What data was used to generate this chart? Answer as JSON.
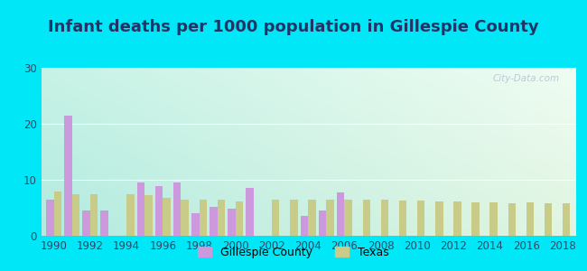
{
  "title": "Infant deaths per 1000 population in Gillespie County",
  "years": [
    1990,
    1991,
    1992,
    1993,
    1994,
    1995,
    1996,
    1997,
    1998,
    1999,
    2000,
    2001,
    2002,
    2003,
    2004,
    2005,
    2006,
    2007,
    2008,
    2009,
    2010,
    2011,
    2012,
    2013,
    2014,
    2015,
    2016,
    2017,
    2018
  ],
  "gillespie": [
    6.5,
    21.5,
    4.5,
    4.5,
    0.0,
    9.5,
    8.8,
    9.5,
    4.0,
    5.2,
    4.8,
    8.5,
    0.0,
    0.0,
    3.5,
    4.5,
    7.8,
    0.0,
    0.0,
    0.0,
    0.0,
    0.0,
    0.0,
    0.0,
    0.0,
    0.0,
    0.0,
    0.0,
    0.0
  ],
  "texas": [
    7.9,
    7.5,
    7.5,
    0.0,
    7.5,
    7.3,
    6.8,
    6.5,
    6.5,
    6.5,
    6.2,
    0.0,
    6.5,
    6.5,
    6.4,
    6.5,
    6.5,
    6.5,
    6.4,
    6.3,
    6.3,
    6.2,
    6.2,
    6.0,
    6.0,
    5.8,
    6.0,
    5.8,
    5.8
  ],
  "gillespie_color": "#cc99dd",
  "texas_color": "#c8cc88",
  "outer_bg": "#00e8f8",
  "title_color": "#223366",
  "ylim": [
    0,
    30
  ],
  "yticks": [
    0,
    10,
    20,
    30
  ],
  "bar_width": 0.42,
  "title_fontsize": 13,
  "legend_labels": [
    "Gillespie County",
    "Texas"
  ],
  "watermark": "City-Data.com",
  "bg_colors": [
    "#d0f0e8",
    "#e8f8e8",
    "#f8fff8",
    "#d8f8f0"
  ],
  "grid_color": "#ccddcc",
  "tick_color": "#334466"
}
